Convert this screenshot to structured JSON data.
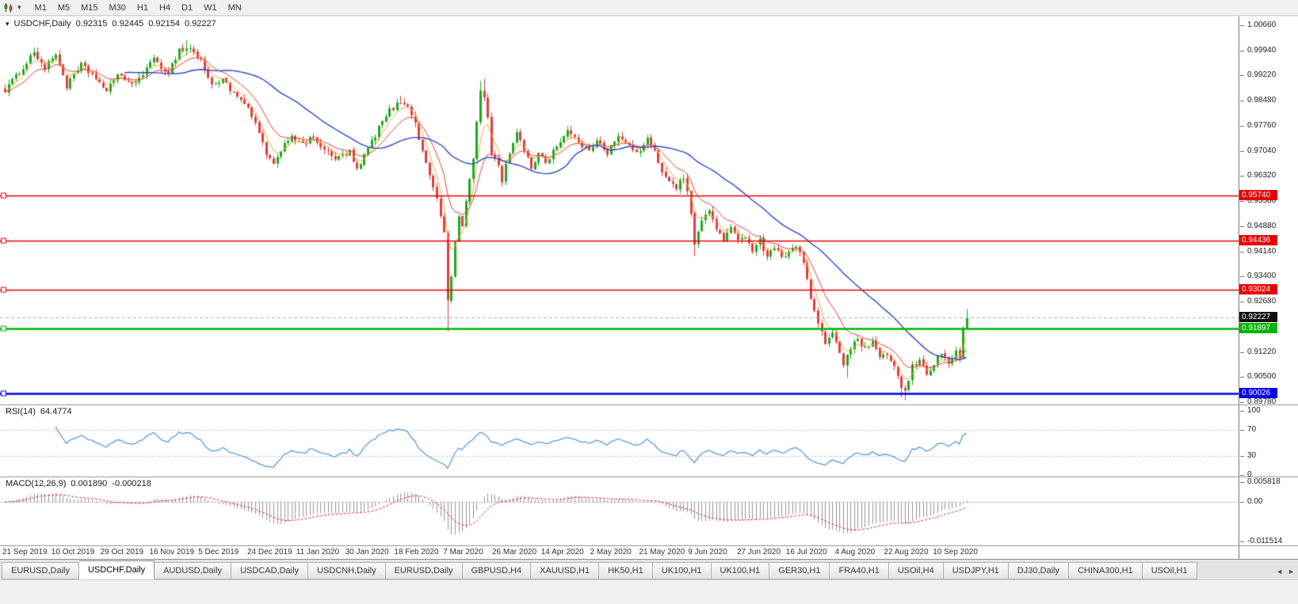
{
  "toolbar": {
    "timeframes": [
      "M1",
      "M5",
      "M15",
      "M30",
      "H1",
      "H4",
      "D1",
      "W1",
      "MN"
    ]
  },
  "chart": {
    "symbol_title": "USDCHF,Daily",
    "ohlc": {
      "open": "0.92315",
      "high": "0.92445",
      "low": "0.92154",
      "close": "0.92227"
    },
    "price_ticks": [
      "1.00660",
      "0.99940",
      "0.99220",
      "0.98480",
      "0.97760",
      "0.97040",
      "0.96320",
      "0.95580",
      "0.94880",
      "0.94140",
      "0.93400",
      "0.92680",
      "0.91960",
      "0.91220",
      "0.90500",
      "0.89780"
    ],
    "date_ticks": [
      "21 Sep 2019",
      "10 Oct 2019",
      "29 Oct 2019",
      "16 Nov 2019",
      "5 Dec 2019",
      "24 Dec 2019",
      "11 Jan 2020",
      "30 Jan 2020",
      "18 Feb 2020",
      "7 Mar 2020",
      "26 Mar 2020",
      "14 Apr 2020",
      "2 May 2020",
      "21 May 2020",
      "9 Jun 2020",
      "27 Jun 2020",
      "16 Jul 2020",
      "4 Aug 2020",
      "22 Aug 2020",
      "10 Sep 2020"
    ],
    "chart_data": {
      "type": "candlestick",
      "symbol": "USDCHF",
      "timeframe": "Daily",
      "ylim": [
        0.8978,
        1.0066
      ],
      "n_candles": 266,
      "close_anchors": [
        [
          0,
          0.988
        ],
        [
          4,
          0.993
        ],
        [
          8,
          0.999
        ],
        [
          11,
          0.994
        ],
        [
          14,
          0.9985
        ],
        [
          17,
          0.989
        ],
        [
          21,
          0.995
        ],
        [
          25,
          0.9915
        ],
        [
          28,
          0.987
        ],
        [
          31,
          0.993
        ],
        [
          35,
          0.989
        ],
        [
          38,
          0.993
        ],
        [
          41,
          0.9965
        ],
        [
          45,
          0.993
        ],
        [
          48,
          0.9995
        ],
        [
          51,
          1.0
        ],
        [
          54,
          0.9965
        ],
        [
          57,
          0.989
        ],
        [
          60,
          0.9915
        ],
        [
          63,
          0.9865
        ],
        [
          66,
          0.984
        ],
        [
          68,
          0.98
        ],
        [
          70,
          0.976
        ],
        [
          72,
          0.969
        ],
        [
          74,
          0.966
        ],
        [
          76,
          0.971
        ],
        [
          79,
          0.975
        ],
        [
          82,
          0.9718
        ],
        [
          85,
          0.9745
        ],
        [
          88,
          0.9705
        ],
        [
          91,
          0.968
        ],
        [
          95,
          0.97
        ],
        [
          97,
          0.9645
        ],
        [
          100,
          0.971
        ],
        [
          103,
          0.977
        ],
        [
          106,
          0.982
        ],
        [
          109,
          0.9845
        ],
        [
          111,
          0.9838
        ],
        [
          113,
          0.978
        ],
        [
          115,
          0.97
        ],
        [
          117,
          0.964
        ],
        [
          119,
          0.956
        ],
        [
          121,
          0.947
        ],
        [
          122,
          0.927
        ],
        [
          123,
          0.934
        ],
        [
          124,
          0.944
        ],
        [
          125,
          0.952
        ],
        [
          126,
          0.948
        ],
        [
          127,
          0.956
        ],
        [
          129,
          0.968
        ],
        [
          131,
          0.988
        ],
        [
          132,
          0.986
        ],
        [
          133,
          0.98
        ],
        [
          134,
          0.97
        ],
        [
          136,
          0.966
        ],
        [
          137,
          0.962
        ],
        [
          139,
          0.97
        ],
        [
          141,
          0.976
        ],
        [
          143,
          0.97
        ],
        [
          145,
          0.9655
        ],
        [
          147,
          0.97
        ],
        [
          149,
          0.967
        ],
        [
          152,
          0.972
        ],
        [
          155,
          0.976
        ],
        [
          158,
          0.973
        ],
        [
          161,
          0.97
        ],
        [
          163,
          0.974
        ],
        [
          166,
          0.97
        ],
        [
          169,
          0.9745
        ],
        [
          172,
          0.9715
        ],
        [
          175,
          0.97
        ],
        [
          177,
          0.9735
        ],
        [
          179,
          0.97
        ],
        [
          181,
          0.9645
        ],
        [
          183,
          0.962
        ],
        [
          185,
          0.96
        ],
        [
          187,
          0.9625
        ],
        [
          188,
          0.959
        ],
        [
          190,
          0.944
        ],
        [
          192,
          0.95
        ],
        [
          194,
          0.953
        ],
        [
          196,
          0.948
        ],
        [
          198,
          0.945
        ],
        [
          200,
          0.948
        ],
        [
          202,
          0.944
        ],
        [
          204,
          0.946
        ],
        [
          206,
          0.942
        ],
        [
          208,
          0.9445
        ],
        [
          210,
          0.94
        ],
        [
          212,
          0.943
        ],
        [
          214,
          0.939
        ],
        [
          216,
          0.942
        ],
        [
          218,
          0.943
        ],
        [
          220,
          0.938
        ],
        [
          222,
          0.928
        ],
        [
          224,
          0.92
        ],
        [
          226,
          0.915
        ],
        [
          228,
          0.918
        ],
        [
          230,
          0.912
        ],
        [
          231,
          0.909
        ],
        [
          233,
          0.913
        ],
        [
          235,
          0.916
        ],
        [
          237,
          0.913
        ],
        [
          239,
          0.915
        ],
        [
          241,
          0.91
        ],
        [
          243,
          0.912
        ],
        [
          245,
          0.908
        ],
        [
          247,
          0.902
        ],
        [
          248,
          0.9005
        ],
        [
          250,
          0.908
        ],
        [
          252,
          0.91
        ],
        [
          254,
          0.906
        ],
        [
          256,
          0.909
        ],
        [
          258,
          0.912
        ],
        [
          260,
          0.909
        ],
        [
          262,
          0.913
        ],
        [
          263,
          0.9105
        ],
        [
          264,
          0.9185
        ],
        [
          265,
          0.92227
        ]
      ],
      "wick_overrides": [
        {
          "i": 8,
          "high": 1.0002
        },
        {
          "i": 49,
          "high": 1.0012
        },
        {
          "i": 50,
          "high": 1.0023
        },
        {
          "i": 109,
          "high": 0.9862
        },
        {
          "i": 122,
          "low": 0.9182
        },
        {
          "i": 131,
          "high": 0.9905
        },
        {
          "i": 132,
          "high": 0.9912
        },
        {
          "i": 190,
          "low": 0.94
        },
        {
          "i": 232,
          "low": 0.9048
        },
        {
          "i": 247,
          "low": 0.8992
        },
        {
          "i": 248,
          "low": 0.8983
        },
        {
          "i": 265,
          "high": 0.9247
        }
      ],
      "last_close": 0.92227,
      "levels": [
        {
          "price": 0.9574,
          "label": "0.95740",
          "color": "#e60000",
          "thickness": 1.4
        },
        {
          "price": 0.94436,
          "label": "0.94436",
          "color": "#e60000",
          "thickness": 1.4
        },
        {
          "price": 0.93024,
          "label": "0.93024",
          "color": "#e60000",
          "thickness": 1.4
        },
        {
          "price": 0.91897,
          "label": "0.91897",
          "color": "#00b400",
          "thickness": 2.4
        },
        {
          "price": 0.90026,
          "label": "0.90026",
          "color": "#0000e6",
          "thickness": 2.4
        }
      ],
      "current": {
        "price": 0.92227,
        "label": "0.92227",
        "color": "#101010"
      },
      "moving_averages": [
        {
          "name": "ma-fast",
          "type": "ema",
          "period": 5,
          "color": "#f2a93b",
          "width": 1
        },
        {
          "name": "ma-medium",
          "type": "ema",
          "period": 12,
          "color": "#e04040",
          "width": 1
        },
        {
          "name": "ma-slow",
          "type": "sma",
          "period": 34,
          "color": "#2b49c8",
          "width": 1.4
        }
      ],
      "colors": {
        "up": "#1cab1c",
        "down": "#e23e3e",
        "rsi": "#5b9bd5",
        "macd_hist": "#969696",
        "macd_signal": "#e03030",
        "current_dash": "#adadad",
        "rsi_level_line": "#c4c4c4"
      },
      "indicators": {
        "rsi": {
          "period": 14,
          "current": "64.4774",
          "levels": [
            70,
            30
          ],
          "range": [
            0,
            100
          ]
        },
        "macd": {
          "fast": 12,
          "slow": 26,
          "signal": 9,
          "main": "0.001890",
          "signal_value": "-0.000218",
          "range": [
            -0.011514,
            0.005818
          ]
        }
      }
    }
  },
  "rsi_panel": {
    "label": "RSI(14)",
    "value": "64.4774",
    "ticks": [
      {
        "label": "100",
        "value": 100
      },
      {
        "label": "70",
        "value": 70
      },
      {
        "label": "30",
        "value": 30
      },
      {
        "label": "0",
        "value": 0
      }
    ]
  },
  "macd_panel": {
    "label": "MACD(12,26,9)",
    "main": "0.001890",
    "signal": "-0.000218",
    "ticks": [
      {
        "label": "0.005818",
        "value": 0.005818
      },
      {
        "label": "0.00",
        "value": 0
      },
      {
        "label": "-0.011514",
        "value": -0.011514
      }
    ]
  },
  "tabbar": {
    "tabs": [
      "EURUSD,Daily",
      "USDCHF,Daily",
      "AUDUSD,Daily",
      "USDCAD,Daily",
      "USDCNH,Daily",
      "EURUSD,Daily",
      "GBPUSD,H4",
      "XAUUSD,H1",
      "HK50,H1",
      "UK100,H1",
      "UK100,H1",
      "GER30,H1",
      "FRA40,H1",
      "USOil,H4",
      "USDJPY,H1",
      "DJ30,Daily",
      "CHINA300,H1",
      "USOil,H1"
    ],
    "active_index": 1,
    "scroll_left": "◄",
    "scroll_right": "►"
  }
}
